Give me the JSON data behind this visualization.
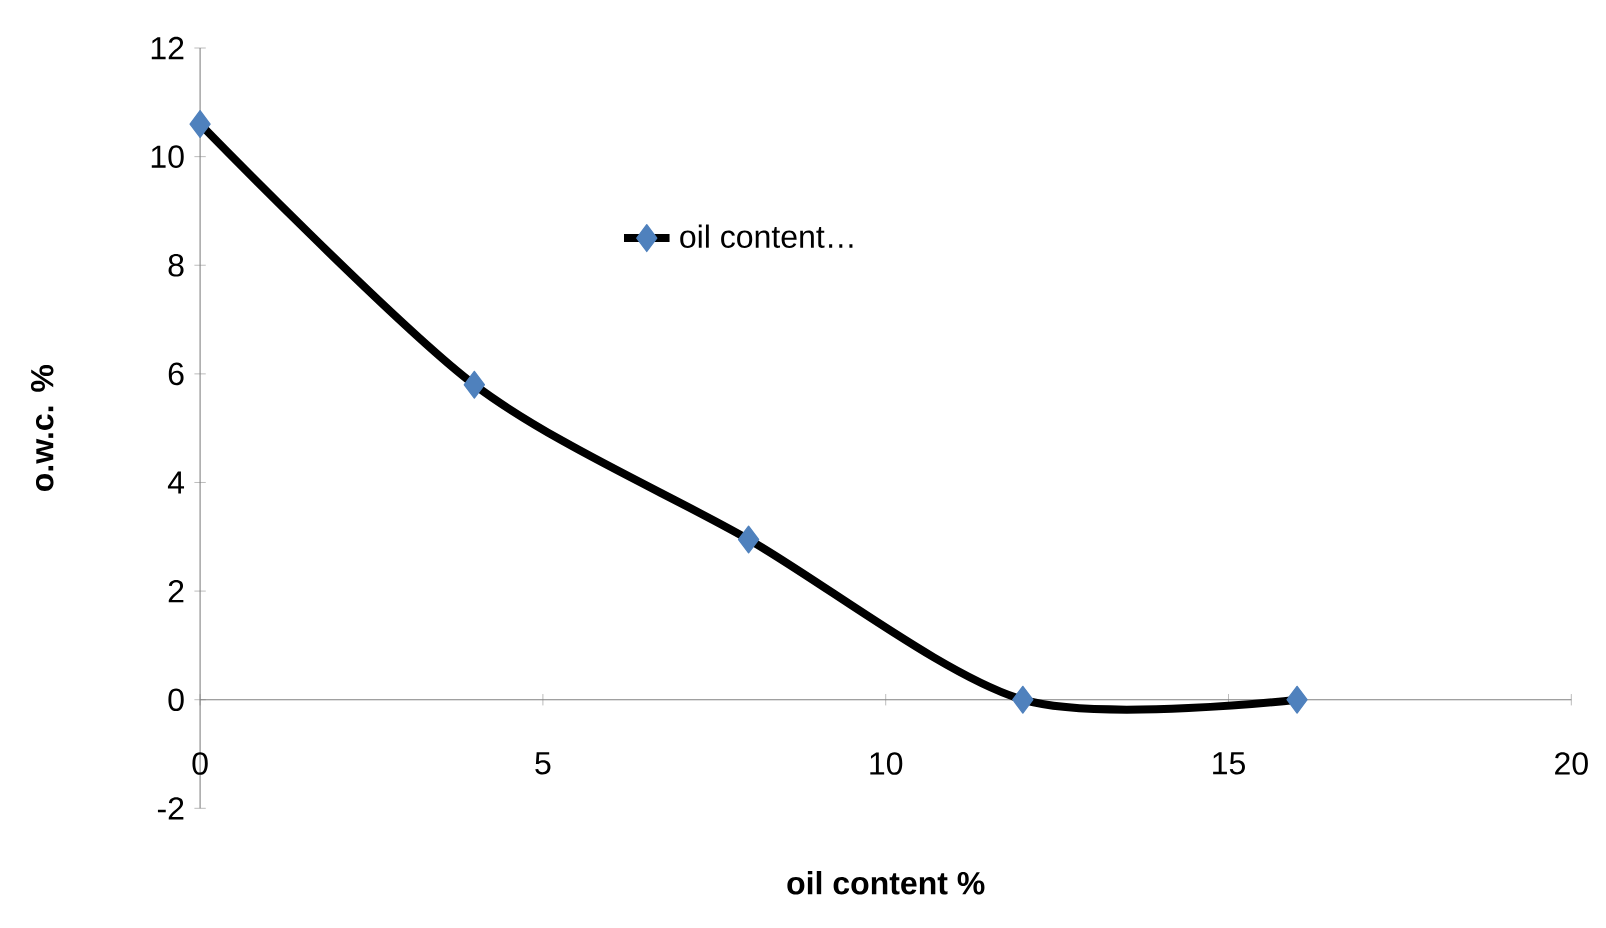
{
  "chart_data": {
    "type": "line",
    "xlabel": "oil content %",
    "ylabel": "o.w.c. %",
    "x": [
      0,
      4,
      8,
      12,
      16
    ],
    "series": [
      {
        "name": "oil content…",
        "color": "#000000",
        "values": [
          10.6,
          5.8,
          2.95,
          0,
          0
        ]
      }
    ],
    "marker": "diamond",
    "line_style": "solid",
    "legend": "top",
    "xlim": [
      0,
      20
    ],
    "xticks": [
      0,
      5,
      10,
      15,
      20
    ],
    "ylim": [
      -2,
      12
    ],
    "yticks": [
      -2,
      0,
      2,
      4,
      6,
      8,
      10,
      12
    ]
  }
}
